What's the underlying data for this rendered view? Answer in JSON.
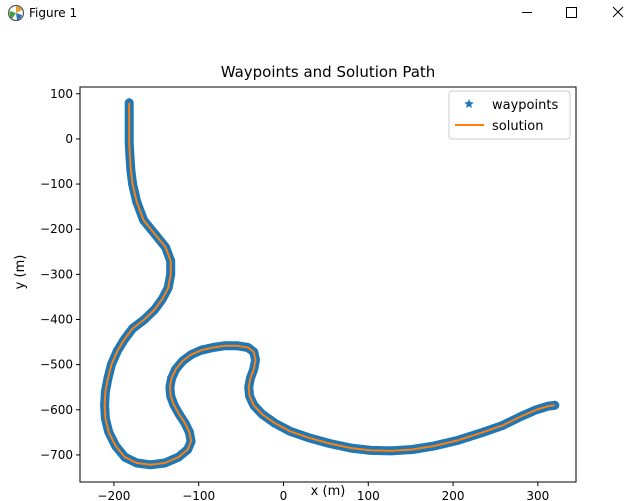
{
  "window": {
    "title": "Figure 1",
    "icons": {
      "app": "matplotlib-icon",
      "minimize": "minimize-icon",
      "maximize": "maximize-icon",
      "close": "close-icon"
    }
  },
  "colors": {
    "waypoints": "#1f77b4",
    "solution": "#ff7f0e",
    "background": "#ffffff",
    "axes": "#000000"
  },
  "chart_data": {
    "type": "line",
    "title": "Waypoints and Solution Path",
    "xlabel": "x (m)",
    "ylabel": "y (m)",
    "xlim": [
      -240,
      345
    ],
    "ylim": [
      -760,
      115
    ],
    "xticks": [
      -200,
      -100,
      0,
      100,
      200,
      300
    ],
    "yticks": [
      100,
      0,
      -100,
      -200,
      -300,
      -400,
      -500,
      -600,
      -700
    ],
    "xtick_labels": [
      "−200",
      "−100",
      "0",
      "100",
      "200",
      "300"
    ],
    "ytick_labels": [
      "100",
      "0",
      "−100",
      "−200",
      "−300",
      "−400",
      "−500",
      "−600",
      "−700"
    ],
    "grid": false,
    "legend_position": "top-right",
    "series": [
      {
        "name": "waypoints",
        "marker": "star",
        "linestyle": "none",
        "x": [
          -182,
          -182,
          -182,
          -182,
          -181,
          -180,
          -178,
          -173,
          -165,
          -152,
          -139,
          -133,
          -133,
          -136,
          -143,
          -152,
          -164,
          -178,
          -188,
          -196,
          -203,
          -207,
          -210,
          -211,
          -210,
          -206,
          -198,
          -187,
          -173,
          -157,
          -140,
          -124,
          -113,
          -109,
          -111,
          -116,
          -123,
          -129,
          -133,
          -134,
          -132,
          -127,
          -119,
          -109,
          -97,
          -83,
          -69,
          -55,
          -42,
          -35,
          -33,
          -35,
          -39,
          -41,
          -40,
          -35,
          -25,
          -10,
          8,
          30,
          55,
          80,
          103,
          127,
          152,
          178,
          205,
          232,
          258,
          280,
          298,
          312,
          320
        ],
        "y": [
          80,
          50,
          20,
          -10,
          -40,
          -70,
          -100,
          -140,
          -180,
          -210,
          -240,
          -270,
          -300,
          -330,
          -355,
          -378,
          -400,
          -420,
          -445,
          -470,
          -500,
          -530,
          -560,
          -590,
          -620,
          -650,
          -680,
          -705,
          -718,
          -722,
          -718,
          -705,
          -688,
          -670,
          -650,
          -630,
          -610,
          -590,
          -570,
          -550,
          -530,
          -510,
          -492,
          -478,
          -468,
          -462,
          -458,
          -458,
          -462,
          -472,
          -490,
          -510,
          -530,
          -550,
          -570,
          -590,
          -610,
          -630,
          -648,
          -662,
          -675,
          -685,
          -690,
          -691,
          -688,
          -680,
          -668,
          -652,
          -635,
          -615,
          -600,
          -592,
          -590
        ]
      },
      {
        "name": "solution",
        "marker": "none",
        "linestyle": "solid",
        "x": [
          -182,
          -182,
          -182,
          -182,
          -181,
          -180,
          -178,
          -173,
          -165,
          -152,
          -139,
          -133,
          -133,
          -136,
          -143,
          -152,
          -164,
          -178,
          -188,
          -196,
          -203,
          -207,
          -210,
          -211,
          -210,
          -206,
          -198,
          -187,
          -173,
          -157,
          -140,
          -124,
          -113,
          -109,
          -111,
          -116,
          -123,
          -129,
          -133,
          -134,
          -132,
          -127,
          -119,
          -109,
          -97,
          -83,
          -69,
          -55,
          -42,
          -35,
          -33,
          -35,
          -39,
          -41,
          -40,
          -35,
          -25,
          -10,
          8,
          30,
          55,
          80,
          103,
          127,
          152,
          178,
          205,
          232,
          258,
          280,
          298,
          312,
          320
        ],
        "y": [
          80,
          50,
          20,
          -10,
          -40,
          -70,
          -100,
          -140,
          -180,
          -210,
          -240,
          -270,
          -300,
          -330,
          -355,
          -378,
          -400,
          -420,
          -445,
          -470,
          -500,
          -530,
          -560,
          -590,
          -620,
          -650,
          -680,
          -705,
          -718,
          -722,
          -718,
          -705,
          -688,
          -670,
          -650,
          -630,
          -610,
          -590,
          -570,
          -550,
          -530,
          -510,
          -492,
          -478,
          -468,
          -462,
          -458,
          -458,
          -462,
          -472,
          -490,
          -510,
          -530,
          -550,
          -570,
          -590,
          -610,
          -630,
          -648,
          -662,
          -675,
          -685,
          -690,
          -691,
          -688,
          -680,
          -668,
          -652,
          -635,
          -615,
          -600,
          -592,
          -590
        ]
      }
    ]
  }
}
